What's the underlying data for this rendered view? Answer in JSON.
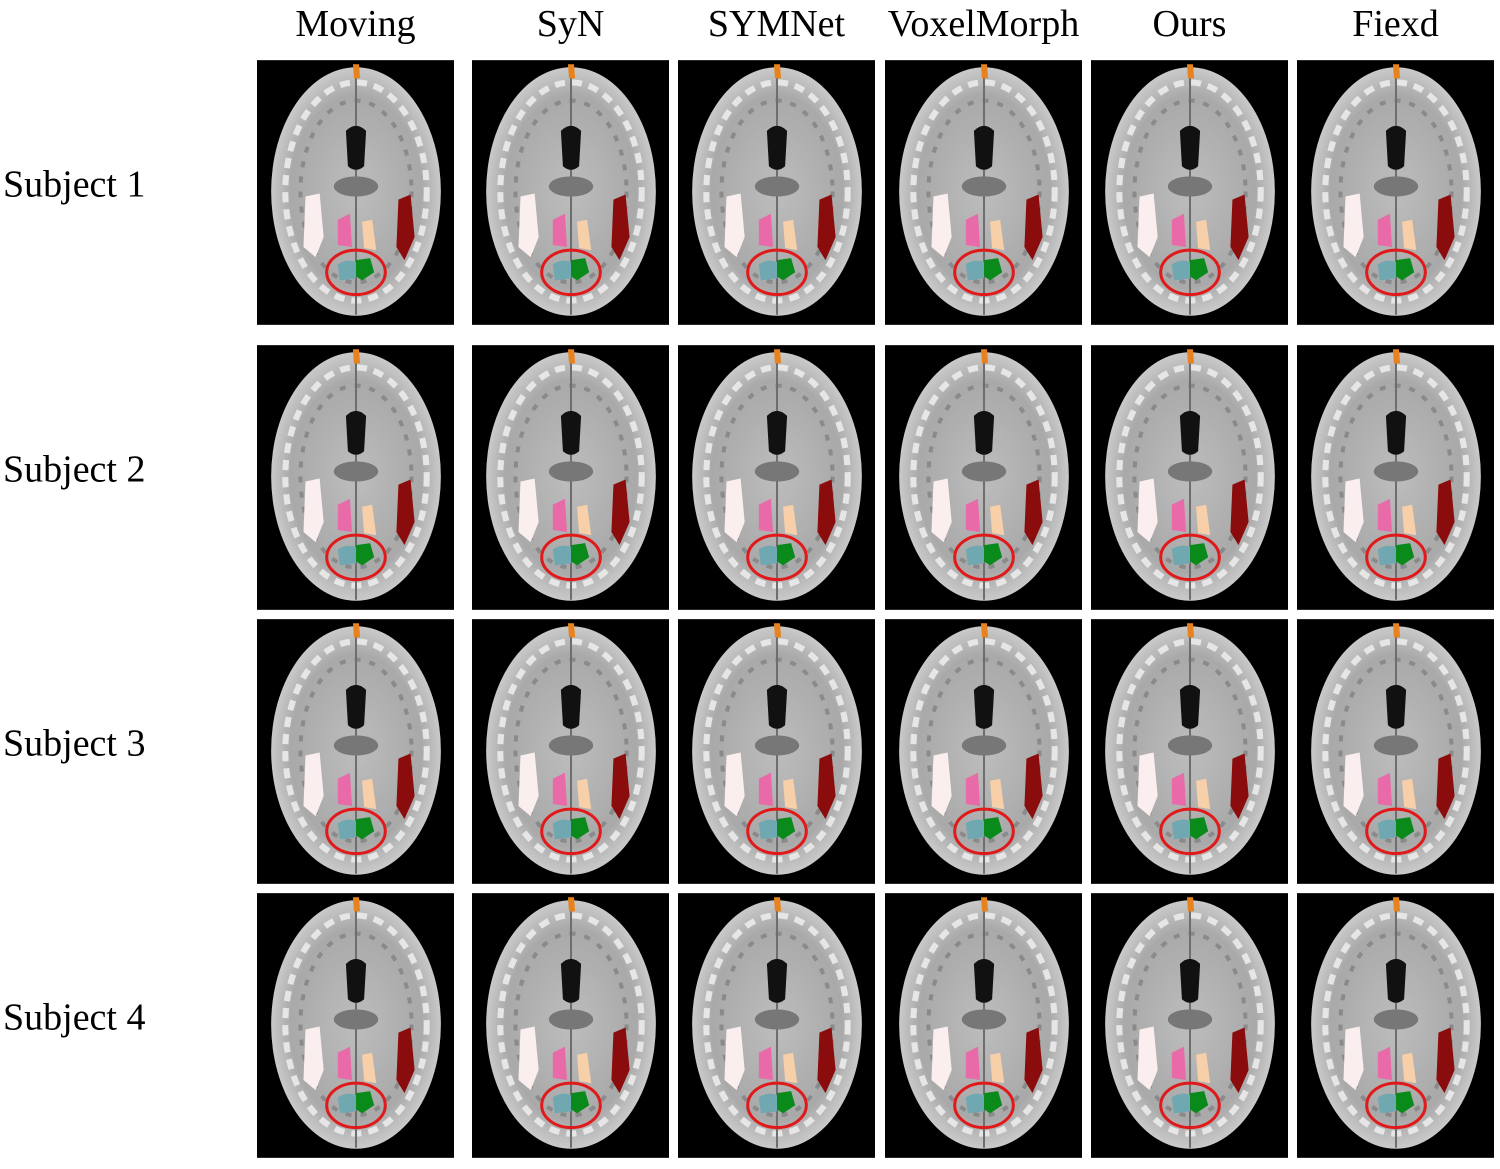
{
  "columns": [
    "Moving",
    "SyN",
    "SYMNet",
    "VoxelMorph",
    "Ours",
    "Fiexd"
  ],
  "rows": [
    "Subject 1",
    "Subject 2",
    "Subject 3",
    "Subject 4"
  ]
}
